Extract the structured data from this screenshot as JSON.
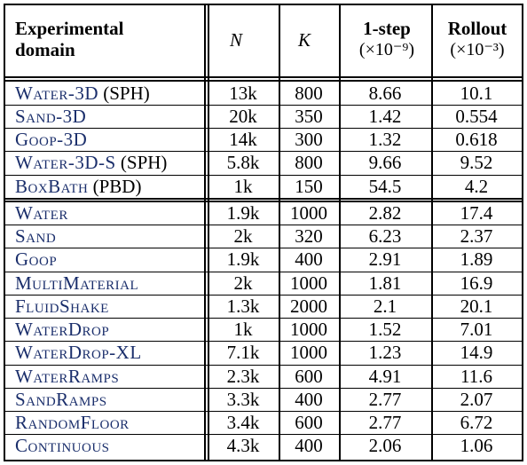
{
  "headers": {
    "domain_line1": "Experimental",
    "domain_line2": "domain",
    "n": "N",
    "k": "K",
    "onestep": "1-step",
    "onestep_unit": "(×10⁻⁹)",
    "rollout": "Rollout",
    "rollout_unit": "(×10⁻³)"
  },
  "rows": [
    {
      "domain": "Water-3D",
      "suffix": " (SPH)",
      "n": "13k",
      "k": "800",
      "onestep": "8.66",
      "rollout": "10.1"
    },
    {
      "domain": "Sand-3D",
      "suffix": "",
      "n": "20k",
      "k": "350",
      "onestep": "1.42",
      "rollout": "0.554"
    },
    {
      "domain": "Goop-3D",
      "suffix": "",
      "n": "14k",
      "k": "300",
      "onestep": "1.32",
      "rollout": "0.618"
    },
    {
      "domain": "Water-3D-S",
      "suffix": " (SPH)",
      "n": "5.8k",
      "k": "800",
      "onestep": "9.66",
      "rollout": "9.52"
    },
    {
      "domain": "BoxBath",
      "suffix": " (PBD)",
      "n": "1k",
      "k": "150",
      "onestep": "54.5",
      "rollout": "4.2"
    },
    {
      "domain": "Water",
      "suffix": "",
      "n": "1.9k",
      "k": "1000",
      "onestep": "2.82",
      "rollout": "17.4"
    },
    {
      "domain": "Sand",
      "suffix": "",
      "n": "2k",
      "k": "320",
      "onestep": "6.23",
      "rollout": "2.37"
    },
    {
      "domain": "Goop",
      "suffix": "",
      "n": "1.9k",
      "k": "400",
      "onestep": "2.91",
      "rollout": "1.89"
    },
    {
      "domain": "MultiMaterial",
      "suffix": "",
      "n": "2k",
      "k": "1000",
      "onestep": "1.81",
      "rollout": "16.9"
    },
    {
      "domain": "FluidShake",
      "suffix": "",
      "n": "1.3k",
      "k": "2000",
      "onestep": "2.1",
      "rollout": "20.1"
    },
    {
      "domain": "WaterDrop",
      "suffix": "",
      "n": "1k",
      "k": "1000",
      "onestep": "1.52",
      "rollout": "7.01"
    },
    {
      "domain": "WaterDrop-XL",
      "suffix": "",
      "n": "7.1k",
      "k": "1000",
      "onestep": "1.23",
      "rollout": "14.9"
    },
    {
      "domain": "WaterRamps",
      "suffix": "",
      "n": "2.3k",
      "k": "600",
      "onestep": "4.91",
      "rollout": "11.6"
    },
    {
      "domain": "SandRamps",
      "suffix": "",
      "n": "3.3k",
      "k": "400",
      "onestep": "2.77",
      "rollout": "2.07"
    },
    {
      "domain": "RandomFloor",
      "suffix": "",
      "n": "3.4k",
      "k": "600",
      "onestep": "2.77",
      "rollout": "6.72"
    },
    {
      "domain": "Continuous",
      "suffix": "",
      "n": "4.3k",
      "k": "400",
      "onestep": "2.06",
      "rollout": "1.06"
    }
  ],
  "colors": {
    "domain_link": "#1a2e6b",
    "rule": "#000000"
  }
}
